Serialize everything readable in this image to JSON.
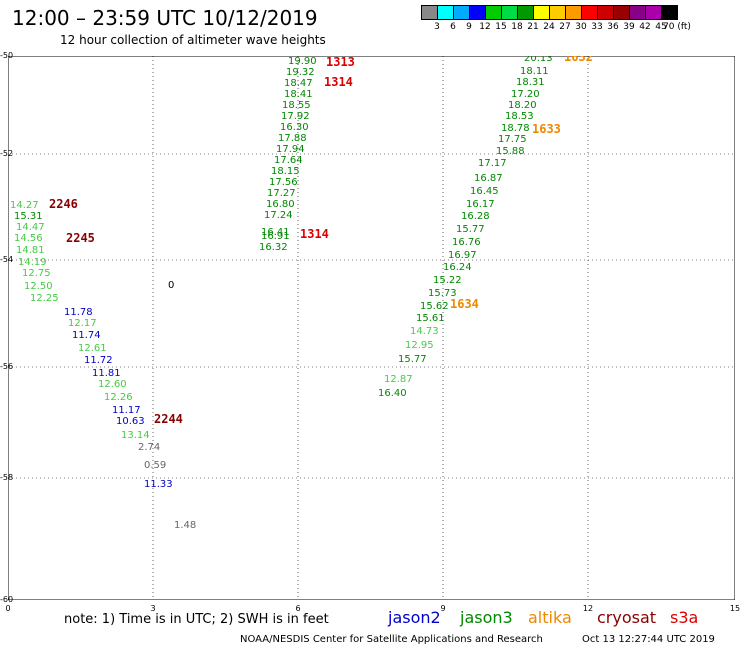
{
  "title": "12:00 – 23:59 UTC 10/12/2019",
  "subtitle": "12 hour collection of altimeter wave heights",
  "colorbar": {
    "colors": [
      "#888888",
      "#00ffff",
      "#00aaff",
      "#0000ff",
      "#00cc00",
      "#00dd44",
      "#009900",
      "#ffff00",
      "#ffcc00",
      "#ff9900",
      "#ff0000",
      "#cc0000",
      "#990000",
      "#880088",
      "#aa00aa",
      "#000000"
    ],
    "labels": [
      "3",
      "6",
      "9",
      "12",
      "15",
      "18",
      "21",
      "24",
      "27",
      "30",
      "33",
      "36",
      "39",
      "42",
      "45",
      "70 (ft)"
    ]
  },
  "lat_labels": [
    "-50",
    "-52",
    "-54",
    "-56",
    "-58",
    "-60"
  ],
  "lon_labels": [
    "0",
    "3",
    "6",
    "9",
    "12",
    "15"
  ],
  "observations": [
    {
      "v": "19.90",
      "c": "#008800"
    },
    {
      "v": "19.32",
      "c": "#008800"
    },
    {
      "v": "18.47",
      "c": "#008800"
    },
    {
      "v": "18.41",
      "c": "#008800"
    },
    {
      "v": "18.55",
      "c": "#008800"
    },
    {
      "v": "17.92",
      "c": "#008800"
    },
    {
      "v": "16.30",
      "c": "#008800"
    },
    {
      "v": "17.88",
      "c": "#008800"
    },
    {
      "v": "17.94",
      "c": "#008800"
    },
    {
      "v": "17.64",
      "c": "#008800"
    },
    {
      "v": "18.15",
      "c": "#008800"
    },
    {
      "v": "17.56",
      "c": "#008800"
    },
    {
      "v": "17.27",
      "c": "#008800"
    },
    {
      "v": "16.80",
      "c": "#008800"
    },
    {
      "v": "17.24",
      "c": "#008800"
    },
    {
      "v": "16.41",
      "c": "#008800"
    },
    {
      "v": "16.91",
      "c": "#008800"
    },
    {
      "v": "16.32",
      "c": "#008800"
    },
    {
      "v": "20.13",
      "c": "#008800"
    },
    {
      "v": "18.11",
      "c": "#008800"
    },
    {
      "v": "18.31",
      "c": "#008800"
    },
    {
      "v": "17.20",
      "c": "#008800"
    },
    {
      "v": "18.20",
      "c": "#008800"
    },
    {
      "v": "18.53",
      "c": "#008800"
    },
    {
      "v": "18.78",
      "c": "#008800"
    },
    {
      "v": "17.75",
      "c": "#008800"
    },
    {
      "v": "15.88",
      "c": "#008800"
    },
    {
      "v": "17.17",
      "c": "#008800"
    },
    {
      "v": "16.87",
      "c": "#008800"
    },
    {
      "v": "16.45",
      "c": "#008800"
    },
    {
      "v": "16.17",
      "c": "#008800"
    },
    {
      "v": "16.28",
      "c": "#008800"
    },
    {
      "v": "15.77",
      "c": "#008800"
    },
    {
      "v": "16.76",
      "c": "#008800"
    },
    {
      "v": "16.97",
      "c": "#008800"
    },
    {
      "v": "16.24",
      "c": "#008800"
    },
    {
      "v": "15.22",
      "c": "#008800"
    },
    {
      "v": "15.73",
      "c": "#008800"
    },
    {
      "v": "15.62",
      "c": "#008800"
    },
    {
      "v": "15.61",
      "c": "#008800"
    },
    {
      "v": "14.73",
      "c": "#44cc44"
    },
    {
      "v": "12.95",
      "c": "#44cc44"
    },
    {
      "v": "15.77",
      "c": "#008800"
    },
    {
      "v": "12.87",
      "c": "#44cc44"
    },
    {
      "v": "16.40",
      "c": "#008800"
    },
    {
      "v": "14.27",
      "c": "#44cc44"
    },
    {
      "v": "15.31",
      "c": "#008800"
    },
    {
      "v": "14.47",
      "c": "#44cc44"
    },
    {
      "v": "14.56",
      "c": "#44cc44"
    },
    {
      "v": "14.81",
      "c": "#44cc44"
    },
    {
      "v": "14.19",
      "c": "#44cc44"
    },
    {
      "v": "12.75",
      "c": "#44cc44"
    },
    {
      "v": "12.50",
      "c": "#44cc44"
    },
    {
      "v": "12.25",
      "c": "#44cc44"
    },
    {
      "v": "11.78",
      "c": "#0000cc"
    },
    {
      "v": "12.17",
      "c": "#44cc44"
    },
    {
      "v": "11.74",
      "c": "#0000cc"
    },
    {
      "v": "12.61",
      "c": "#44cc44"
    },
    {
      "v": "11.72",
      "c": "#0000cc"
    },
    {
      "v": "11.81",
      "c": "#0000cc"
    },
    {
      "v": "12.60",
      "c": "#44cc44"
    },
    {
      "v": "12.26",
      "c": "#44cc44"
    },
    {
      "v": "11.17",
      "c": "#0000cc"
    },
    {
      "v": "10.63",
      "c": "#0000cc"
    },
    {
      "v": "13.14",
      "c": "#44cc44"
    },
    {
      "v": "2.74",
      "c": "#666666"
    },
    {
      "v": "0.59",
      "c": "#666666"
    },
    {
      "v": "11.33",
      "c": "#0000cc"
    },
    {
      "v": "1.48",
      "c": "#666666"
    },
    {
      "v": "0",
      "c": "#000000"
    }
  ],
  "pass_labels": [
    {
      "v": "1313",
      "c": "#dd0000"
    },
    {
      "v": "1314",
      "c": "#dd0000"
    },
    {
      "v": "1314",
      "c": "#dd0000"
    },
    {
      "v": "1632",
      "c": "#ee8800"
    },
    {
      "v": "1633",
      "c": "#ee8800"
    },
    {
      "v": "1634",
      "c": "#ee8800"
    },
    {
      "v": "2246",
      "c": "#880000"
    },
    {
      "v": "2245",
      "c": "#880000"
    },
    {
      "v": "2244",
      "c": "#880000"
    }
  ],
  "note": "note:  1) Time is in UTC;  2) SWH is in feet",
  "legend": [
    {
      "label": "jason2",
      "color": "#0000cc"
    },
    {
      "label": "jason3",
      "color": "#008800"
    },
    {
      "label": "altika",
      "color": "#ee8800"
    },
    {
      "label": "cryosat",
      "color": "#880000"
    },
    {
      "label": "s3a",
      "color": "#dd0000"
    }
  ],
  "footer": "NOAA/NESDIS Center for Satellite Applications and Research",
  "footer_time": "Oct 13 12:27:44 UTC 2019"
}
